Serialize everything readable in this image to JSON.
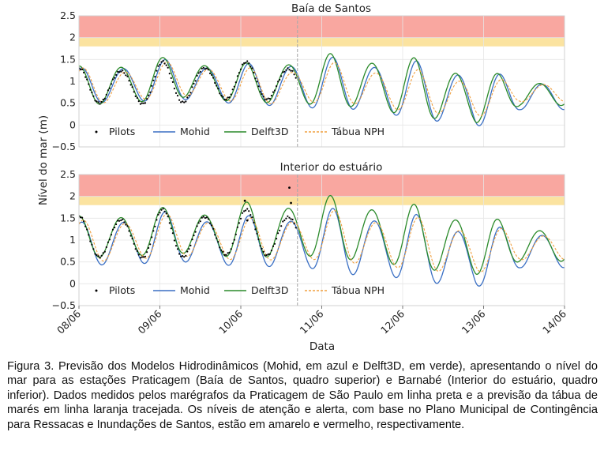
{
  "caption": "Figura 3. Previsão dos Modelos Hidrodinâmicos (Mohid, em azul e Delft3D, em verde), apresentando o nível do mar para as estações Praticagem (Baía de Santos, quadro superior) e Barnabé (Interior do estuário, quadro inferior). Dados medidos pelos marégrafos da Praticagem de São Paulo em linha preta e a previsão da tábua de marés em linha laranja tracejada. Os níveis de atenção e alerta, com base no Plano Municipal de Contingência para Ressacas e Inundações de Santos, estão em amarelo e vermelho, respectivamente.",
  "colors": {
    "mohid": "#3a6fc4",
    "delft3d": "#2a8a2a",
    "tabua": "#f0a040",
    "pilots": "#000000",
    "attention": "#fbe3a0",
    "alert": "#f9a7a0",
    "now_line": "#aaaaaa"
  },
  "chart_data": [
    {
      "type": "line",
      "title": "Baía de Santos",
      "ylabel": "Nível do mar (m)",
      "xlabel": "Data",
      "x_ticks": [
        "08/06",
        "09/06",
        "10/06",
        "11/06",
        "12/06",
        "13/06",
        "14/06"
      ],
      "xlim": [
        "08/06",
        "14/06"
      ],
      "ylim": [
        -0.5,
        2.5
      ],
      "y_ticks": [
        "2.5",
        "2",
        "1.5",
        "1",
        "0.5",
        "0",
        "−0.5"
      ],
      "attention_band": [
        1.8,
        2.0
      ],
      "alert_band": [
        2.0,
        2.5
      ],
      "now_marker_day": 10.7,
      "legend": [
        "Pilots",
        "Mohid",
        "Delft3D",
        "Tábua NPH"
      ],
      "legend_position": "bottom",
      "series": [
        {
          "name": "Mohid",
          "highs": [
            1.3,
            1.45,
            1.5,
            1.45,
            1.4,
            1.55,
            1.55,
            1.5,
            1.45,
            1.3,
            1.05
          ],
          "lows": [
            0.5,
            0.4,
            0.55,
            0.45,
            0.4,
            0.3,
            0.3,
            0.15,
            0.0,
            -0.15,
            0.3
          ]
        },
        {
          "name": "Delft3D",
          "highs": [
            1.35,
            1.5,
            1.55,
            1.5,
            1.4,
            1.6,
            1.65,
            1.6,
            1.5,
            1.3,
            1.05
          ],
          "lows": [
            0.45,
            0.35,
            0.6,
            0.5,
            0.45,
            0.4,
            0.35,
            0.2,
            0.05,
            -0.05,
            0.4
          ]
        },
        {
          "name": "Tábua NPH",
          "highs": [
            1.3,
            1.35,
            1.45,
            1.4,
            1.3,
            1.35,
            1.45,
            1.3,
            1.25,
            1.1,
            1.0
          ],
          "lows": [
            0.5,
            0.4,
            0.65,
            0.55,
            0.4,
            0.45,
            0.45,
            0.3,
            0.2,
            0.1,
            0.5
          ]
        },
        {
          "name": "Pilots",
          "highs": [
            1.3,
            1.45,
            1.45,
            1.4,
            1.4
          ],
          "lows": [
            0.45,
            0.4,
            0.55,
            0.45,
            0.35
          ]
        }
      ]
    },
    {
      "type": "line",
      "title": "Interior do estuário",
      "ylabel": "Nível do mar (m)",
      "xlabel": "Data",
      "x_ticks": [
        "08/06",
        "09/06",
        "10/06",
        "11/06",
        "12/06",
        "13/06",
        "14/06"
      ],
      "xlim": [
        "08/06",
        "14/06"
      ],
      "ylim": [
        -0.5,
        2.5
      ],
      "y_ticks": [
        "2.5",
        "2",
        "1.5",
        "1",
        "0.5",
        "0",
        "−0.5"
      ],
      "attention_band": [
        1.8,
        2.0
      ],
      "alert_band": [
        2.0,
        2.5
      ],
      "now_marker_day": 10.7,
      "legend": [
        "Pilots",
        "Mohid",
        "Delft3D",
        "Tábua NPH"
      ],
      "legend_position": "bottom",
      "series": [
        {
          "name": "Mohid",
          "highs": [
            1.4,
            1.6,
            1.65,
            1.6,
            1.55,
            1.65,
            1.75,
            1.65,
            1.55,
            1.35,
            1.25
          ],
          "lows": [
            0.4,
            0.3,
            0.45,
            0.35,
            0.3,
            0.3,
            0.1,
            0.05,
            -0.1,
            -0.2,
            0.3
          ]
        },
        {
          "name": "Delft3D",
          "highs": [
            1.55,
            1.7,
            1.75,
            1.75,
            1.9,
            1.95,
            2.05,
            1.85,
            1.8,
            1.6,
            1.35
          ],
          "lows": [
            0.55,
            0.5,
            0.65,
            0.55,
            0.5,
            0.55,
            0.45,
            0.35,
            0.2,
            0.1,
            0.45
          ]
        },
        {
          "name": "Tábua NPH",
          "highs": [
            1.45,
            1.55,
            1.6,
            1.55,
            1.5,
            1.6,
            1.7,
            1.55,
            1.5,
            1.35,
            1.2
          ],
          "lows": [
            0.5,
            0.4,
            0.6,
            0.5,
            0.45,
            0.5,
            0.4,
            0.3,
            0.2,
            0.15,
            0.5
          ]
        },
        {
          "name": "Pilots",
          "highs": [
            1.55,
            1.7,
            1.7,
            1.7,
            1.65
          ],
          "lows": [
            0.55,
            0.5,
            0.6,
            0.5,
            0.45
          ],
          "outliers": [
            {
              "x": 10.05,
              "y": 1.9
            },
            {
              "x": 10.08,
              "y": 1.45
            },
            {
              "x": 10.6,
              "y": 2.2
            },
            {
              "x": 10.62,
              "y": 1.85
            }
          ]
        }
      ]
    }
  ]
}
